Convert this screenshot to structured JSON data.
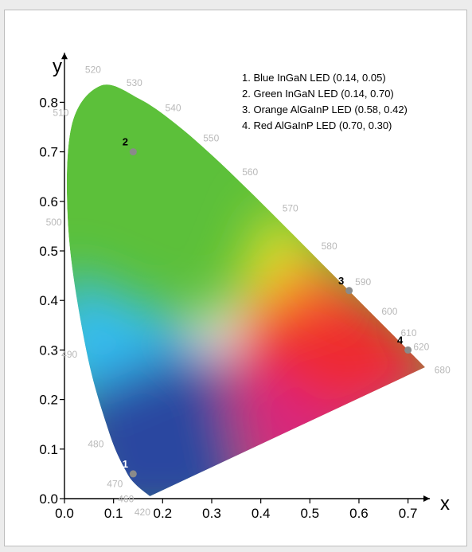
{
  "chart_data": {
    "type": "scatter",
    "xlabel": "x",
    "ylabel": "y",
    "xlim": [
      0.0,
      0.75
    ],
    "ylim": [
      0.0,
      0.85
    ],
    "x_ticks": [
      "0.0",
      "0.1",
      "0.2",
      "0.3",
      "0.4",
      "0.5",
      "0.6",
      "0.7"
    ],
    "y_ticks": [
      "0.0",
      "0.1",
      "0.2",
      "0.3",
      "0.4",
      "0.5",
      "0.6",
      "0.7",
      "0.8"
    ],
    "grid": false,
    "legend_position": "top-right",
    "legend": [
      "1.  Blue InGaN LED (0.14, 0.05)",
      "2.  Green InGaN LED (0.14, 0.70)",
      "3.  Orange AlGaInP LED (0.58, 0.42)",
      "4.  Red AlGaInP LED (0.70, 0.30)"
    ],
    "points": [
      {
        "label": "1",
        "x": 0.14,
        "y": 0.05,
        "label_color": "#ffffff"
      },
      {
        "label": "2",
        "x": 0.14,
        "y": 0.7,
        "label_color": "#000000"
      },
      {
        "label": "3",
        "x": 0.58,
        "y": 0.42,
        "label_color": "#000000"
      },
      {
        "label": "4",
        "x": 0.7,
        "y": 0.3,
        "label_color": "#000000"
      }
    ],
    "spectral_locus": [
      {
        "nm": "420",
        "x": 0.1741,
        "y": 0.005
      },
      {
        "nm": "460",
        "x": 0.144,
        "y": 0.0297
      },
      {
        "nm": "470",
        "x": 0.1241,
        "y": 0.0578
      },
      {
        "nm": "480",
        "x": 0.0913,
        "y": 0.1327
      },
      {
        "nm": "490",
        "x": 0.0454,
        "y": 0.295
      },
      {
        "nm": "500",
        "x": 0.0082,
        "y": 0.5384
      },
      {
        "nm": "510",
        "x": 0.0139,
        "y": 0.7502
      },
      {
        "nm": "520",
        "x": 0.0743,
        "y": 0.8338
      },
      {
        "nm": "530",
        "x": 0.1547,
        "y": 0.8059
      },
      {
        "nm": "540",
        "x": 0.2296,
        "y": 0.7543
      },
      {
        "nm": "550",
        "x": 0.3016,
        "y": 0.6923
      },
      {
        "nm": "560",
        "x": 0.3731,
        "y": 0.6245
      },
      {
        "nm": "570",
        "x": 0.4441,
        "y": 0.5547
      },
      {
        "nm": "580",
        "x": 0.5125,
        "y": 0.4866
      },
      {
        "nm": "590",
        "x": 0.5752,
        "y": 0.4242
      },
      {
        "nm": "600",
        "x": 0.627,
        "y": 0.3725
      },
      {
        "nm": "610",
        "x": 0.6658,
        "y": 0.334
      },
      {
        "nm": "620",
        "x": 0.6915,
        "y": 0.3083
      },
      {
        "nm": "680",
        "x": 0.7347,
        "y": 0.2653
      }
    ],
    "colors": {
      "green": "#5cc03a",
      "cyan": "#35bcef",
      "blue": "#2a46a0",
      "red": "#ef2b2e",
      "yellow": "#e2e02a",
      "orange": "#f6772a",
      "magenta": "#d8287d",
      "marker": "#8a8a8a"
    }
  }
}
